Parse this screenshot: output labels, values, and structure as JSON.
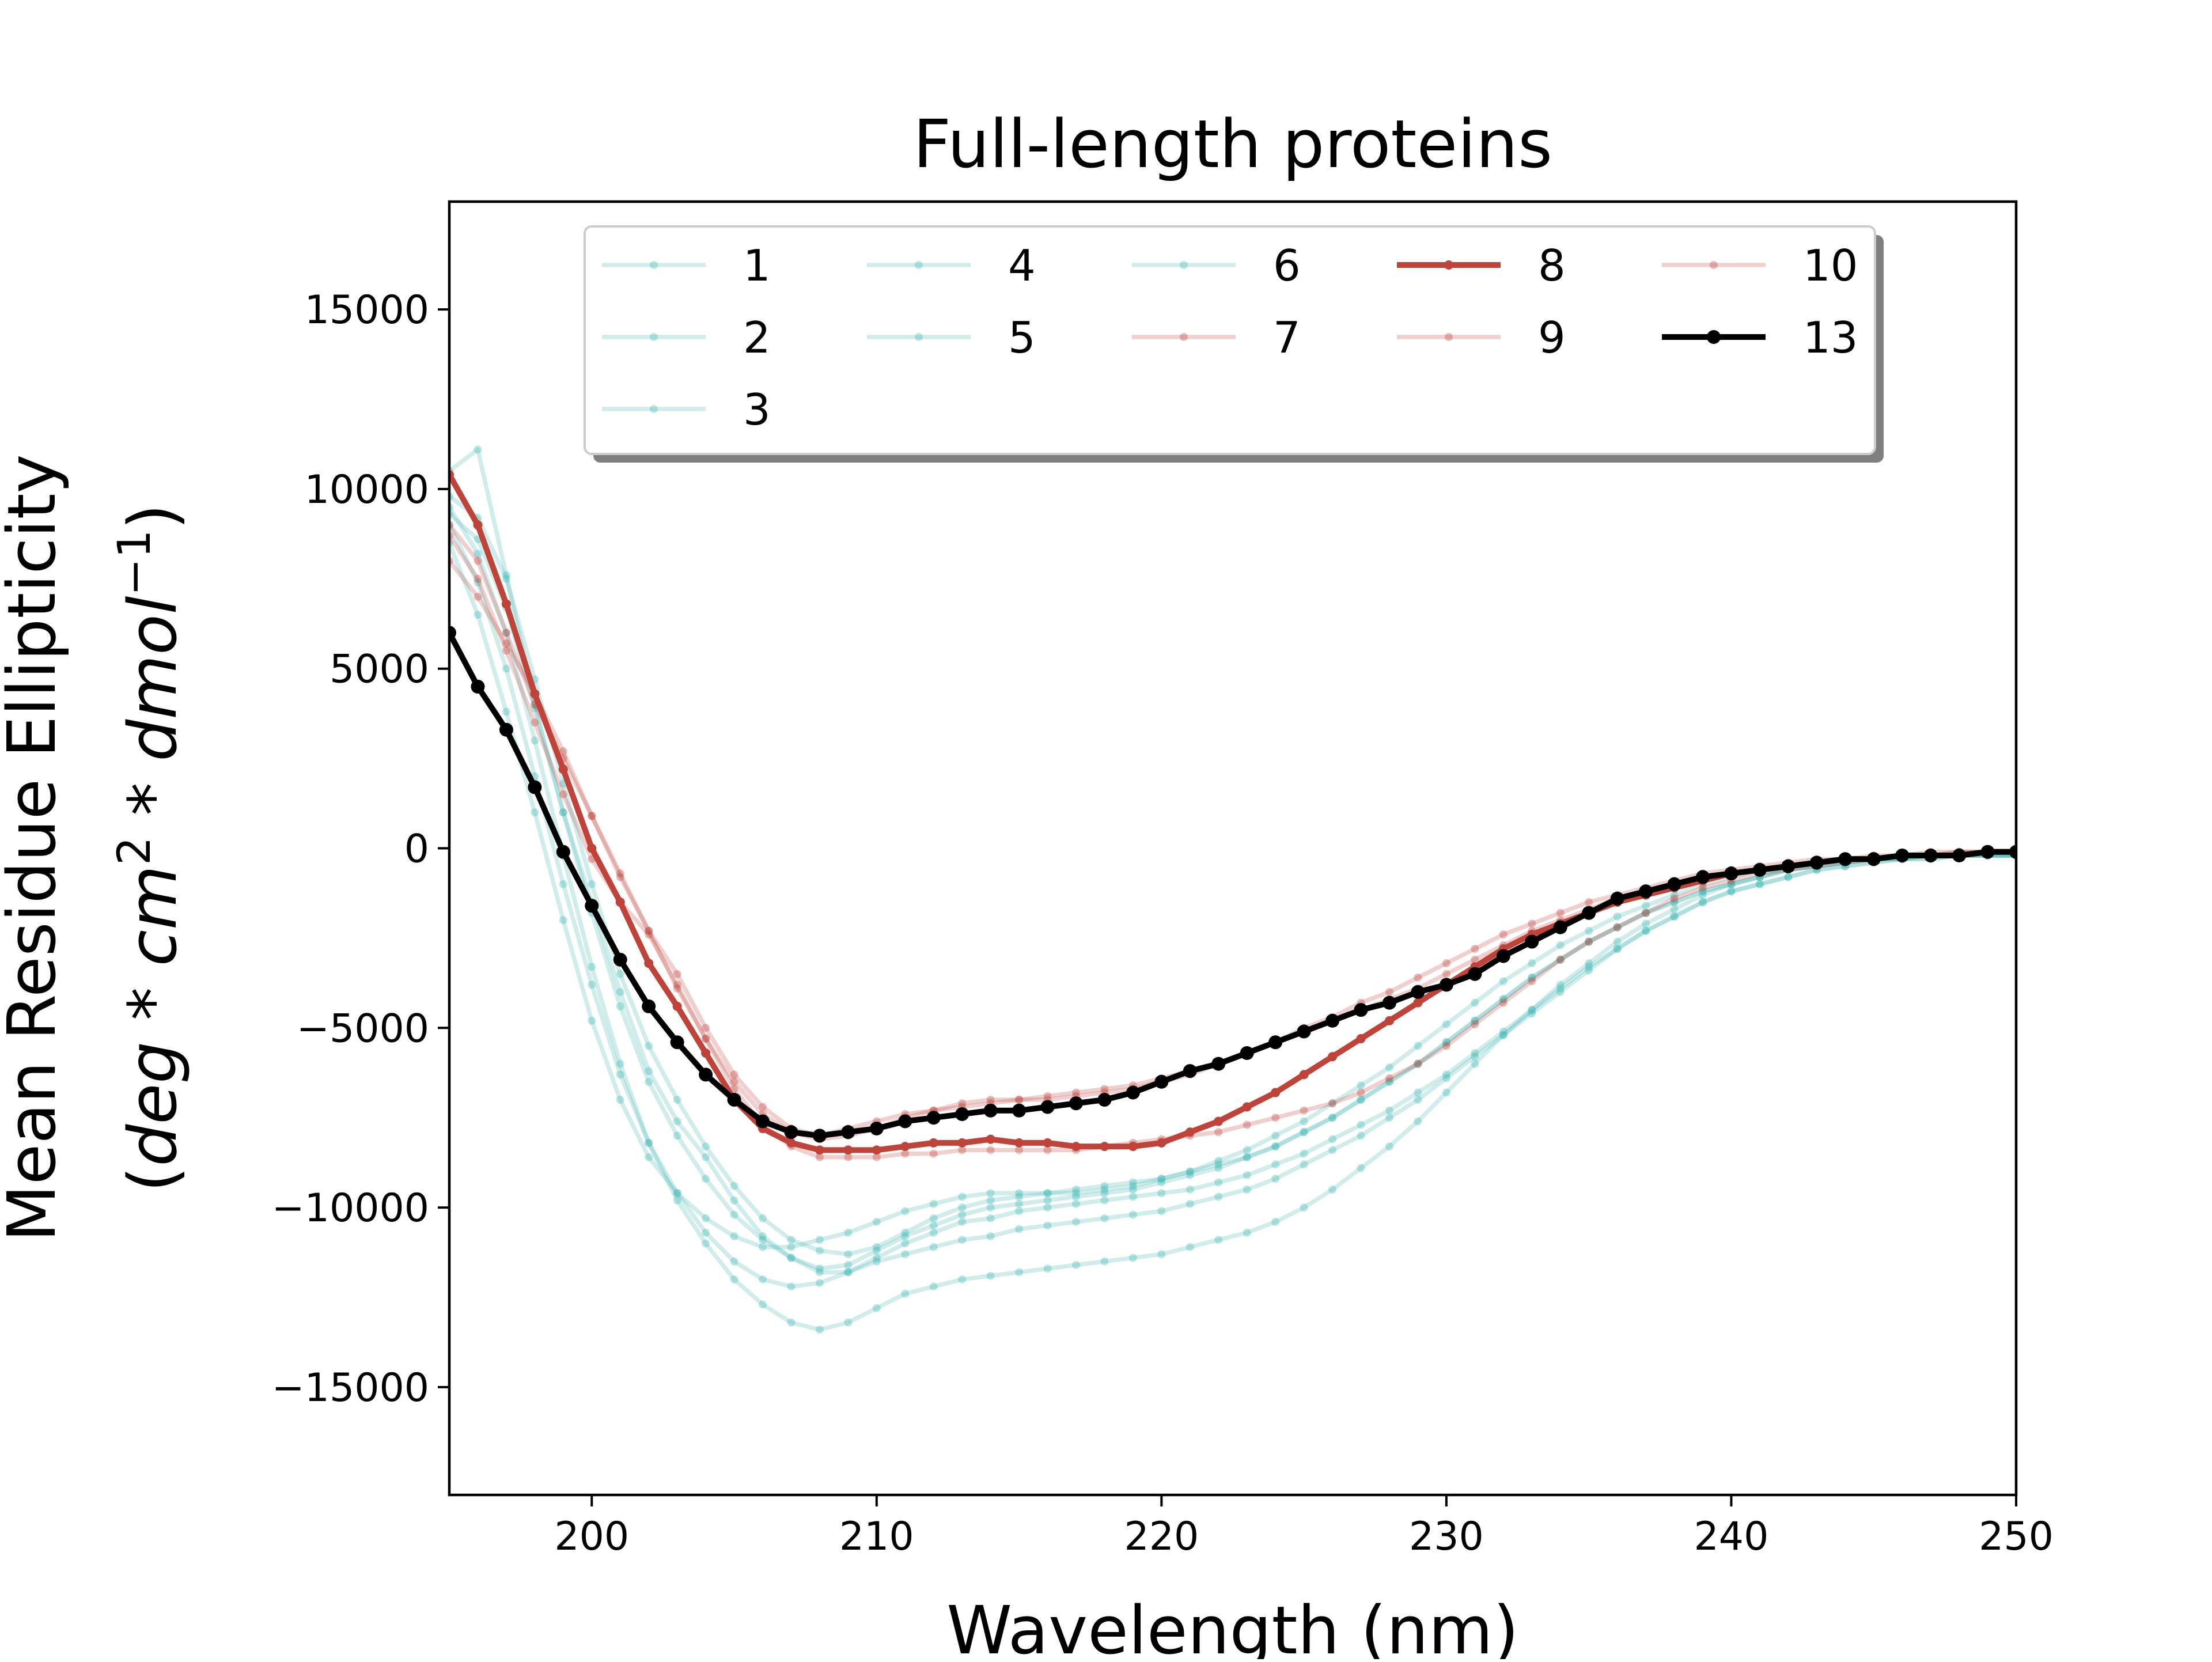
{
  "chart_data": {
    "type": "line",
    "title": "Full-length proteins",
    "xlabel": "Wavelength (nm)",
    "ylabel_line1": "Mean Residue Ellipticity",
    "ylabel_line2_parts": [
      "(deg",
      " * ",
      "cm",
      "2",
      " * ",
      "dmol",
      "−1",
      ")"
    ],
    "xlim": [
      195,
      250
    ],
    "ylim": [
      -18000,
      18000
    ],
    "xticks": [
      200,
      210,
      220,
      230,
      240,
      250
    ],
    "yticks": [
      -15000,
      -10000,
      -5000,
      0,
      5000,
      10000,
      15000
    ],
    "ytick_labels": [
      "−15000",
      "−10000",
      "−5000",
      "0",
      "5000",
      "10000",
      "15000"
    ],
    "grid": false,
    "legend": {
      "placement": "upper-center",
      "columns": 5
    },
    "colors": {
      "teal": "#43b9b5",
      "red": "#c0433a",
      "black": "#000000"
    },
    "x": [
      195,
      196,
      197,
      198,
      199,
      200,
      201,
      202,
      203,
      204,
      205,
      206,
      207,
      208,
      209,
      210,
      211,
      212,
      213,
      214,
      215,
      216,
      217,
      218,
      219,
      220,
      221,
      222,
      223,
      224,
      225,
      226,
      227,
      228,
      229,
      230,
      231,
      232,
      233,
      234,
      235,
      236,
      237,
      238,
      239,
      240,
      241,
      242,
      243,
      244,
      245,
      246,
      247,
      248,
      249,
      250
    ],
    "series": [
      {
        "name": "1",
        "group": "teal",
        "values": [
          10500,
          11100,
          7600,
          4000,
          1000,
          -1500,
          -4000,
          -6200,
          -7600,
          -8600,
          -9800,
          -10800,
          -11400,
          -11800,
          -11800,
          -11400,
          -11000,
          -10700,
          -10400,
          -10300,
          -10100,
          -10000,
          -9900,
          -9800,
          -9700,
          -9600,
          -9500,
          -9300,
          -9100,
          -8800,
          -8500,
          -8100,
          -7700,
          -7300,
          -6800,
          -6300,
          -5700,
          -5100,
          -4500,
          -3900,
          -3300,
          -2800,
          -2300,
          -1900,
          -1500,
          -1200,
          -1000,
          -800,
          -600,
          -500,
          -400,
          -300,
          -300,
          -200,
          -200,
          -200
        ]
      },
      {
        "name": "2",
        "group": "teal",
        "values": [
          9800,
          9200,
          7500,
          4700,
          1800,
          -1000,
          -3500,
          -5500,
          -7000,
          -8300,
          -9400,
          -10300,
          -10900,
          -11200,
          -11300,
          -11100,
          -10700,
          -10300,
          -10000,
          -9800,
          -9700,
          -9600,
          -9500,
          -9400,
          -9300,
          -9200,
          -9000,
          -8800,
          -8600,
          -8300,
          -7900,
          -7500,
          -7000,
          -6500,
          -6000,
          -5400,
          -4800,
          -4200,
          -3600,
          -3100,
          -2600,
          -2200,
          -1800,
          -1500,
          -1200,
          -1000,
          -800,
          -600,
          -500,
          -400,
          -300,
          -300,
          -200,
          -200,
          -200,
          -200
        ]
      },
      {
        "name": "3",
        "group": "teal",
        "values": [
          9300,
          8600,
          6700,
          3900,
          1000,
          -1800,
          -4400,
          -6500,
          -8000,
          -9200,
          -10200,
          -10900,
          -11400,
          -11700,
          -11600,
          -11200,
          -10800,
          -10500,
          -10200,
          -10000,
          -9900,
          -9800,
          -9700,
          -9600,
          -9500,
          -9300,
          -9100,
          -8900,
          -8600,
          -8300,
          -7900,
          -7500,
          -7000,
          -6500,
          -6000,
          -5400,
          -4800,
          -4200,
          -3600,
          -3100,
          -2600,
          -2200,
          -1800,
          -1500,
          -1200,
          -1000,
          -800,
          -600,
          -500,
          -400,
          -300,
          -300,
          -200,
          -200,
          -200,
          -200
        ]
      },
      {
        "name": "4",
        "group": "teal",
        "values": [
          8500,
          6500,
          3800,
          1000,
          -2000,
          -4800,
          -7000,
          -8600,
          -9600,
          -10300,
          -10800,
          -11100,
          -11100,
          -10900,
          -10700,
          -10400,
          -10100,
          -9900,
          -9700,
          -9600,
          -9600,
          -9600,
          -9600,
          -9500,
          -9400,
          -9200,
          -9000,
          -8700,
          -8400,
          -8000,
          -7600,
          -7100,
          -6600,
          -6100,
          -5500,
          -4900,
          -4300,
          -3700,
          -3200,
          -2700,
          -2300,
          -1900,
          -1600,
          -1300,
          -1000,
          -800,
          -600,
          -500,
          -400,
          -300,
          -300,
          -200,
          -200,
          -200,
          -200,
          -200
        ]
      },
      {
        "name": "5",
        "group": "teal",
        "values": [
          9000,
          7400,
          5000,
          2000,
          -1000,
          -3800,
          -6300,
          -8200,
          -9600,
          -10700,
          -11500,
          -12000,
          -12200,
          -12100,
          -11800,
          -11500,
          -11300,
          -11100,
          -10900,
          -10800,
          -10600,
          -10500,
          -10400,
          -10300,
          -10200,
          -10100,
          -9900,
          -9700,
          -9500,
          -9200,
          -8800,
          -8400,
          -8000,
          -7500,
          -7000,
          -6400,
          -5800,
          -5200,
          -4600,
          -4000,
          -3400,
          -2800,
          -2300,
          -1900,
          -1500,
          -1200,
          -1000,
          -800,
          -600,
          -500,
          -400,
          -300,
          -300,
          -200,
          -200,
          -200
        ]
      },
      {
        "name": "6",
        "group": "teal",
        "values": [
          9500,
          8200,
          6000,
          3000,
          -200,
          -3300,
          -6000,
          -8200,
          -9800,
          -11000,
          -12000,
          -12700,
          -13200,
          -13400,
          -13200,
          -12800,
          -12400,
          -12200,
          -12000,
          -11900,
          -11800,
          -11700,
          -11600,
          -11500,
          -11400,
          -11300,
          -11100,
          -10900,
          -10700,
          -10400,
          -10000,
          -9500,
          -8900,
          -8300,
          -7600,
          -6800,
          -6000,
          -5200,
          -4500,
          -3800,
          -3200,
          -2600,
          -2100,
          -1700,
          -1300,
          -1000,
          -800,
          -600,
          -500,
          -400,
          -300,
          -300,
          -200,
          -200,
          -200,
          -200
        ]
      },
      {
        "name": "7",
        "group": "red",
        "values": [
          8700,
          7500,
          5500,
          3500,
          1500,
          -300,
          -1500,
          -2400,
          -3800,
          -5300,
          -6500,
          -7400,
          -7900,
          -8100,
          -8000,
          -7800,
          -7500,
          -7300,
          -7100,
          -7000,
          -7000,
          -6900,
          -6800,
          -6700,
          -6600,
          -6400,
          -6200,
          -6000,
          -5700,
          -5400,
          -5100,
          -4800,
          -4500,
          -4200,
          -3900,
          -3500,
          -3100,
          -2700,
          -2300,
          -2000,
          -1700,
          -1400,
          -1200,
          -1000,
          -800,
          -700,
          -600,
          -500,
          -400,
          -300,
          -300,
          -200,
          -200,
          -100,
          -100,
          -100
        ]
      },
      {
        "name": "8",
        "group": "red",
        "emphasis": true,
        "values": [
          10400,
          9000,
          6800,
          4300,
          2200,
          0,
          -1500,
          -3200,
          -4400,
          -5700,
          -7000,
          -7800,
          -8200,
          -8400,
          -8400,
          -8400,
          -8300,
          -8200,
          -8200,
          -8100,
          -8200,
          -8200,
          -8300,
          -8300,
          -8300,
          -8200,
          -7900,
          -7600,
          -7200,
          -6800,
          -6300,
          -5800,
          -5300,
          -4800,
          -4300,
          -3800,
          -3300,
          -2800,
          -2400,
          -2100,
          -1800,
          -1500,
          -1300,
          -1100,
          -900,
          -700,
          -600,
          -500,
          -400,
          -300,
          -300,
          -200,
          -200,
          -200,
          -100,
          -100
        ]
      },
      {
        "name": "9",
        "group": "red",
        "values": [
          9000,
          8000,
          6000,
          4000,
          2500,
          900,
          -800,
          -2300,
          -3900,
          -5300,
          -6700,
          -7700,
          -8300,
          -8600,
          -8600,
          -8600,
          -8500,
          -8500,
          -8400,
          -8400,
          -8400,
          -8400,
          -8400,
          -8300,
          -8200,
          -8100,
          -8000,
          -7900,
          -7700,
          -7500,
          -7300,
          -7100,
          -6800,
          -6400,
          -6000,
          -5500,
          -4900,
          -4300,
          -3700,
          -3100,
          -2600,
          -2200,
          -1800,
          -1400,
          -1100,
          -900,
          -700,
          -600,
          -500,
          -400,
          -300,
          -200,
          -200,
          -100,
          -100,
          -100
        ]
      },
      {
        "name": "10",
        "group": "red",
        "values": [
          8000,
          7000,
          5700,
          4300,
          2700,
          900,
          -700,
          -2300,
          -3500,
          -5000,
          -6300,
          -7200,
          -7800,
          -8000,
          -7800,
          -7600,
          -7400,
          -7300,
          -7200,
          -7100,
          -7000,
          -7000,
          -6900,
          -6800,
          -6700,
          -6500,
          -6300,
          -6000,
          -5700,
          -5400,
          -5000,
          -4700,
          -4300,
          -4000,
          -3600,
          -3200,
          -2800,
          -2400,
          -2100,
          -1800,
          -1500,
          -1300,
          -1100,
          -900,
          -700,
          -600,
          -500,
          -400,
          -300,
          -300,
          -200,
          -200,
          -100,
          -100,
          -100,
          -100
        ]
      },
      {
        "name": "13",
        "group": "black",
        "emphasis": true,
        "values": [
          6000,
          4500,
          3300,
          1700,
          -100,
          -1600,
          -3100,
          -4400,
          -5400,
          -6300,
          -7000,
          -7600,
          -7900,
          -8000,
          -7900,
          -7800,
          -7600,
          -7500,
          -7400,
          -7300,
          -7300,
          -7200,
          -7100,
          -7000,
          -6800,
          -6500,
          -6200,
          -6000,
          -5700,
          -5400,
          -5100,
          -4800,
          -4500,
          -4300,
          -4000,
          -3800,
          -3500,
          -3000,
          -2600,
          -2200,
          -1800,
          -1400,
          -1200,
          -1000,
          -800,
          -700,
          -600,
          -500,
          -400,
          -300,
          -300,
          -200,
          -200,
          -200,
          -100,
          -100
        ]
      }
    ]
  }
}
